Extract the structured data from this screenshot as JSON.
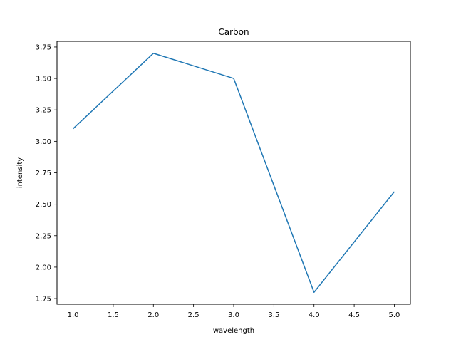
{
  "chart_data": {
    "type": "line",
    "title": "Carbon",
    "xlabel": "wavelength",
    "ylabel": "intensity",
    "x": [
      1.0,
      2.0,
      3.0,
      4.0,
      5.0
    ],
    "series": [
      {
        "values": [
          3.1,
          3.7,
          3.5,
          1.8,
          2.6
        ],
        "color": "#1f77b4"
      }
    ],
    "xlim": [
      0.8,
      5.2
    ],
    "ylim": [
      1.705,
      3.795
    ],
    "xticks": [
      1.0,
      1.5,
      2.0,
      2.5,
      3.0,
      3.5,
      4.0,
      4.5,
      5.0
    ],
    "xtick_labels": [
      "1.0",
      "1.5",
      "2.0",
      "2.5",
      "3.0",
      "3.5",
      "4.0",
      "4.5",
      "5.0"
    ],
    "yticks": [
      1.75,
      2.0,
      2.25,
      2.5,
      2.75,
      3.0,
      3.25,
      3.5,
      3.75
    ],
    "ytick_labels": [
      "1.75",
      "2.00",
      "2.25",
      "2.50",
      "2.75",
      "3.00",
      "3.25",
      "3.50",
      "3.75"
    ],
    "grid": false,
    "legend": false
  }
}
